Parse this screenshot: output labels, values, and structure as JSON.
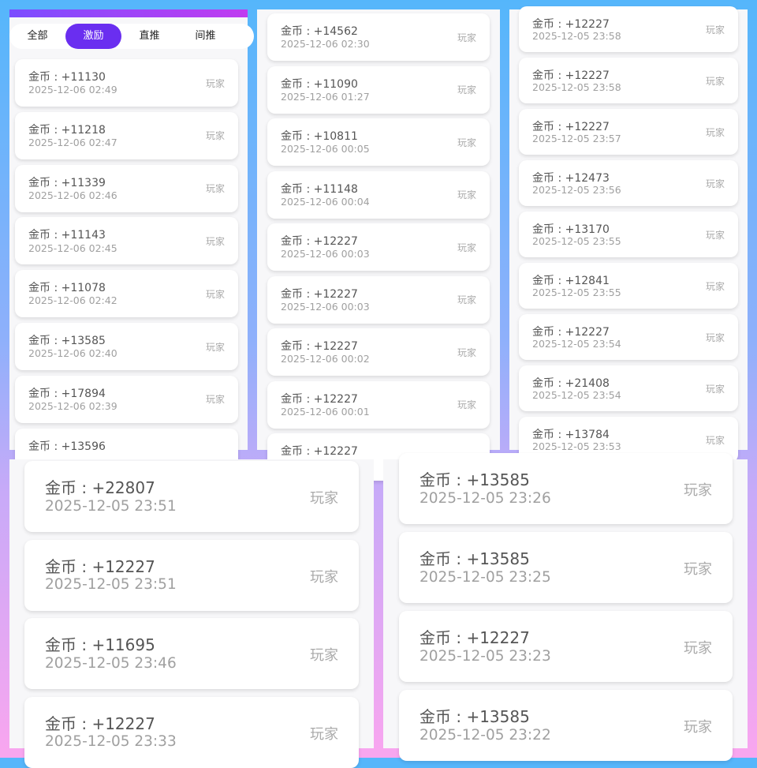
{
  "tabs": [
    "全部",
    "激励",
    "直推",
    "间推"
  ],
  "panels": [
    {
      "items": [
        {
          "coin": "金币 : +11130",
          "time": "2025-12-06 02:49",
          "role": "玩家"
        },
        {
          "coin": "金币 : +11218",
          "time": "2025-12-06 02:47",
          "role": "玩家"
        },
        {
          "coin": "金币 : +11339",
          "time": "2025-12-06 02:46",
          "role": "玩家"
        },
        {
          "coin": "金币 : +11143",
          "time": "2025-12-06 02:45",
          "role": "玩家"
        },
        {
          "coin": "金币 : +11078",
          "time": "2025-12-06 02:42",
          "role": "玩家"
        },
        {
          "coin": "金币 : +13585",
          "time": "2025-12-06 02:40",
          "role": "玩家"
        },
        {
          "coin": "金币 : +17894",
          "time": "2025-12-06 02:39",
          "role": "玩家"
        },
        {
          "coin": "金币 : +13596",
          "time": "",
          "role": ""
        }
      ]
    },
    {
      "items": [
        {
          "coin": "金币 : +14562",
          "time": "2025-12-06 02:30",
          "role": "玩家"
        },
        {
          "coin": "金币 : +11090",
          "time": "2025-12-06 01:27",
          "role": "玩家"
        },
        {
          "coin": "金币 : +10811",
          "time": "2025-12-06 00:05",
          "role": "玩家"
        },
        {
          "coin": "金币 : +11148",
          "time": "2025-12-06 00:04",
          "role": "玩家"
        },
        {
          "coin": "金币 : +12227",
          "time": "2025-12-06 00:03",
          "role": "玩家"
        },
        {
          "coin": "金币 : +12227",
          "time": "2025-12-06 00:03",
          "role": "玩家"
        },
        {
          "coin": "金币 : +12227",
          "time": "2025-12-06 00:02",
          "role": "玩家"
        },
        {
          "coin": "金币 : +12227",
          "time": "2025-12-06 00:01",
          "role": "玩家"
        },
        {
          "coin": "金币 : +12227",
          "time": "",
          "role": ""
        }
      ]
    },
    {
      "items": [
        {
          "coin": "金币 : +12227",
          "time": "2025-12-05 23:58",
          "role": "玩家"
        },
        {
          "coin": "金币 : +12227",
          "time": "2025-12-05 23:58",
          "role": "玩家"
        },
        {
          "coin": "金币 : +12227",
          "time": "2025-12-05 23:57",
          "role": "玩家"
        },
        {
          "coin": "金币 : +12473",
          "time": "2025-12-05 23:56",
          "role": "玩家"
        },
        {
          "coin": "金币 : +13170",
          "time": "2025-12-05 23:55",
          "role": "玩家"
        },
        {
          "coin": "金币 : +12841",
          "time": "2025-12-05 23:55",
          "role": "玩家"
        },
        {
          "coin": "金币 : +12227",
          "time": "2025-12-05 23:54",
          "role": "玩家"
        },
        {
          "coin": "金币 : +21408",
          "time": "2025-12-05 23:54",
          "role": "玩家"
        },
        {
          "coin": "金币 : +13784",
          "time": "2025-12-05 23:53",
          "role": "玩家"
        }
      ]
    },
    {
      "items": [
        {
          "coin": "金币 : +22807",
          "time": "2025-12-05 23:51",
          "role": "玩家"
        },
        {
          "coin": "金币 : +12227",
          "time": "2025-12-05 23:51",
          "role": "玩家"
        },
        {
          "coin": "金币 : +11695",
          "time": "2025-12-05 23:46",
          "role": "玩家"
        },
        {
          "coin": "金币 : +12227",
          "time": "2025-12-05 23:33",
          "role": "玩家"
        }
      ]
    },
    {
      "items": [
        {
          "coin": "金币 : +13585",
          "time": "2025-12-05 23:26",
          "role": "玩家"
        },
        {
          "coin": "金币 : +13585",
          "time": "2025-12-05 23:25",
          "role": "玩家"
        },
        {
          "coin": "金币 : +12227",
          "time": "2025-12-05 23:23",
          "role": "玩家"
        },
        {
          "coin": "金币 : +13585",
          "time": "2025-12-05 23:22",
          "role": "玩家"
        }
      ]
    }
  ]
}
